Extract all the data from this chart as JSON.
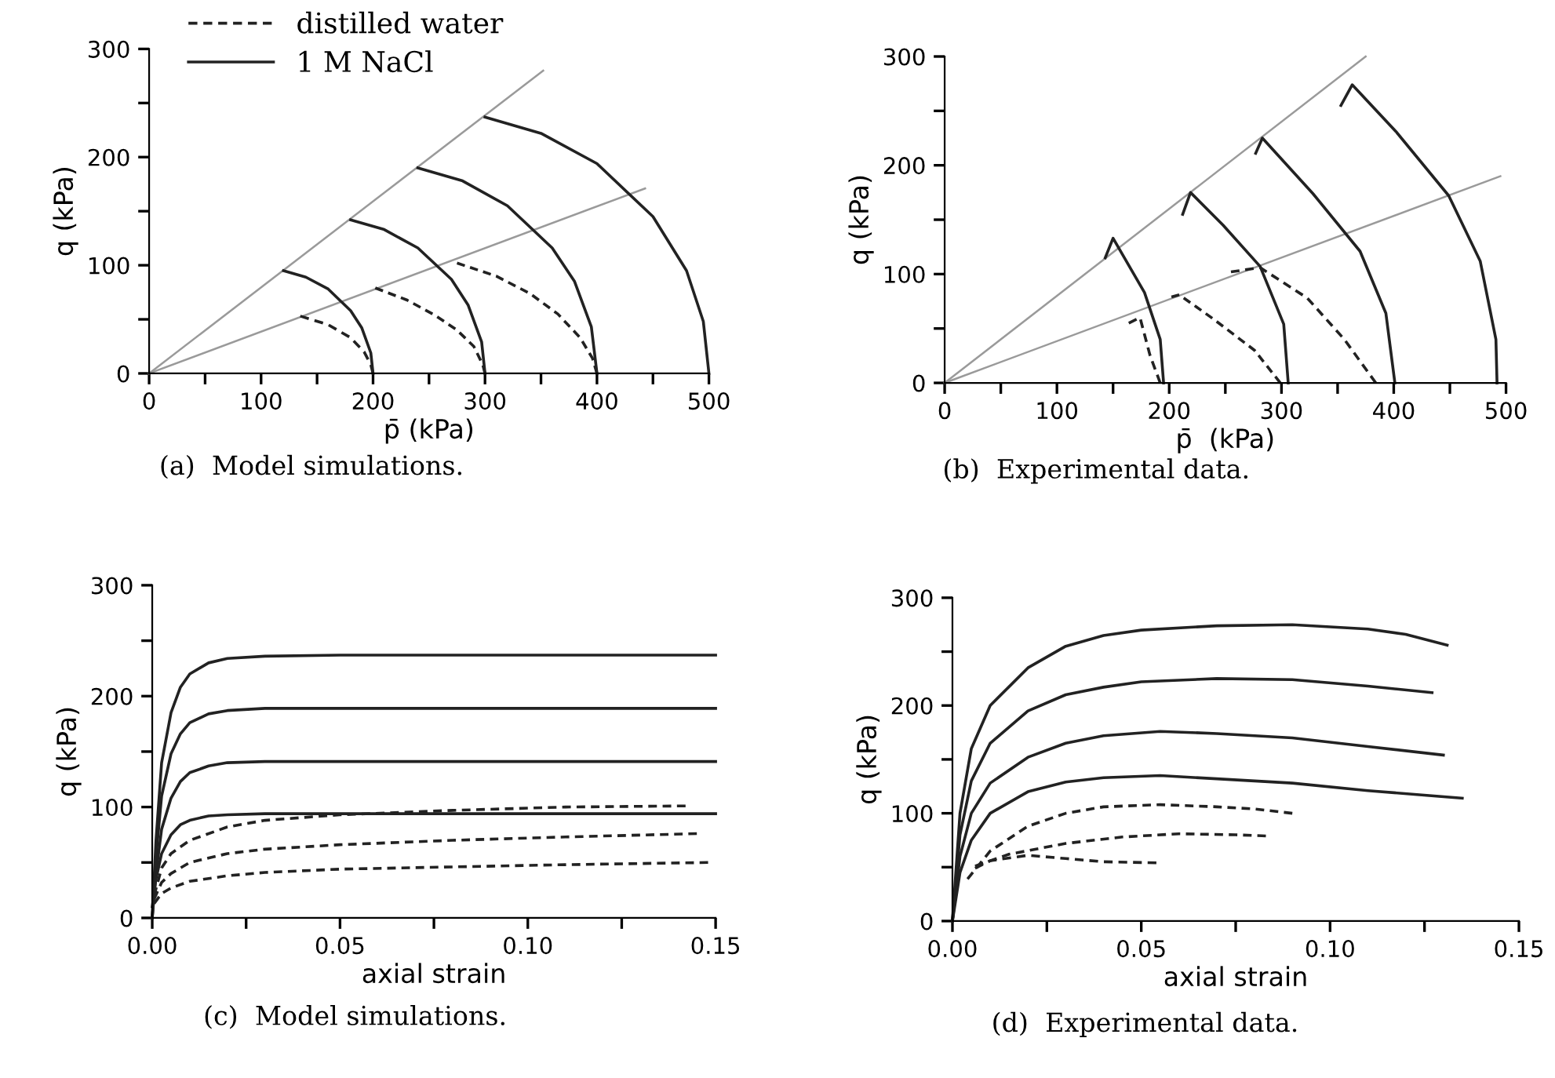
{
  "chart_data": [
    {
      "type": "line",
      "title": "(a)  Model simulations.",
      "xlabel": "p̄ (kPa)",
      "ylabel": "q (kPa)",
      "xlim": [
        0,
        500
      ],
      "ylim": [
        0,
        300
      ],
      "xticks": [
        0,
        {
          "value": 50,
          "label": null
        },
        100,
        {
          "value": 150,
          "label": null
        },
        200,
        {
          "value": 250,
          "label": null
        },
        300,
        {
          "value": 350,
          "label": null
        },
        400,
        {
          "value": 450,
          "label": null
        },
        500
      ],
      "yticks": [
        0,
        {
          "value": 50,
          "label": null
        },
        100,
        {
          "value": 150,
          "label": null
        },
        200,
        {
          "value": 250,
          "label": null
        },
        300
      ],
      "grid": false,
      "legend": "top left",
      "series": [
        {
          "color": "#9a9a9a",
          "x": [
            0,
            352
          ],
          "values": [
            0,
            280
          ]
        },
        {
          "color": "#9a9a9a",
          "x": [
            0,
            443
          ],
          "values": [
            0,
            171
          ]
        },
        {
          "name": "distilled water",
          "color": "#222222",
          "line_style": "dashed",
          "x": [
            135,
            160,
            180,
            192,
            198,
            200
          ],
          "values": [
            53,
            45,
            33,
            20,
            8,
            0
          ]
        },
        {
          "name": "1 M NaCl",
          "color": "#222222",
          "line_style": "solid",
          "x": [
            120,
            140,
            160,
            180,
            190,
            198,
            200
          ],
          "values": [
            95,
            89,
            78,
            58,
            42,
            19,
            0
          ]
        },
        {
          "color": "#222222",
          "line_style": "solid",
          "x": [
            180,
            210,
            240,
            270,
            285,
            297,
            300
          ],
          "values": [
            142,
            133,
            116,
            87,
            63,
            29,
            0
          ]
        },
        {
          "color": "#222222",
          "line_style": "solid",
          "x": [
            240,
            280,
            320,
            360,
            380,
            395,
            400
          ],
          "values": [
            190,
            178,
            155,
            116,
            85,
            43,
            0
          ]
        },
        {
          "color": "#222222",
          "line_style": "solid",
          "x": [
            300,
            350,
            400,
            450,
            480,
            495,
            500
          ],
          "values": [
            237,
            222,
            194,
            145,
            95,
            48,
            0
          ]
        },
        {
          "color": "#222222",
          "line_style": "dashed",
          "x": [
            202,
            230,
            255,
            275,
            290,
            298,
            300
          ],
          "values": [
            79,
            68,
            54,
            40,
            25,
            8,
            0
          ]
        },
        {
          "color": "#222222",
          "line_style": "dashed",
          "x": [
            275,
            310,
            340,
            365,
            385,
            396,
            400
          ],
          "values": [
            102,
            90,
            74,
            55,
            33,
            14,
            0
          ]
        }
      ]
    },
    {
      "type": "line",
      "title": "(b)  Experimental data.",
      "xlabel": "p̄  (kPa)",
      "ylabel": "q (kPa)",
      "xlim": [
        0,
        500
      ],
      "ylim": [
        0,
        300
      ],
      "xticks": [
        0,
        {
          "value": 50,
          "label": null
        },
        100,
        {
          "value": 150,
          "label": null
        },
        200,
        {
          "value": 250,
          "label": null
        },
        300,
        {
          "value": 350,
          "label": null
        },
        400,
        {
          "value": 450,
          "label": null
        },
        500
      ],
      "yticks": [
        0,
        {
          "value": 50,
          "label": null
        },
        100,
        {
          "value": 150,
          "label": null
        },
        200,
        {
          "value": 250,
          "label": null
        },
        300
      ],
      "grid": false,
      "series": [
        {
          "color": "#9a9a9a",
          "x": [
            0,
            375
          ],
          "values": [
            0,
            300
          ]
        },
        {
          "color": "#9a9a9a",
          "x": [
            0,
            495
          ],
          "values": [
            0,
            190
          ]
        },
        {
          "color": "#222222",
          "line_style": "solid",
          "x": [
            143,
            150,
            178,
            192,
            195
          ],
          "values": [
            115,
            133,
            83,
            40,
            0
          ]
        },
        {
          "color": "#222222",
          "line_style": "solid",
          "x": [
            212,
            219,
            248,
            281,
            302,
            306
          ],
          "values": [
            155,
            175,
            145,
            107,
            54,
            0
          ]
        },
        {
          "color": "#222222",
          "line_style": "solid",
          "x": [
            277,
            283,
            328,
            370,
            393,
            401
          ],
          "values": [
            211,
            225,
            174,
            121,
            64,
            0
          ]
        },
        {
          "color": "#222222",
          "line_style": "solid",
          "x": [
            353,
            363,
            402,
            449,
            477,
            491,
            492
          ],
          "values": [
            255,
            274,
            231,
            172,
            112,
            40,
            0
          ]
        },
        {
          "color": "#222222",
          "line_style": "dashed",
          "x": [
            164,
            174,
            183,
            192
          ],
          "values": [
            55,
            60,
            25,
            0
          ]
        },
        {
          "color": "#222222",
          "line_style": "dashed",
          "x": [
            202,
            209,
            239,
            276,
            299
          ],
          "values": [
            79,
            81,
            59,
            30,
            0
          ]
        },
        {
          "color": "#222222",
          "line_style": "dashed",
          "x": [
            255,
            281,
            323,
            356,
            384
          ],
          "values": [
            102,
            106,
            78,
            40,
            0
          ]
        }
      ]
    },
    {
      "type": "line",
      "title": "(c)  Model simulations.",
      "xlabel": "axial strain",
      "ylabel": "q (kPa)",
      "xlim": [
        0,
        0.15
      ],
      "ylim": [
        0,
        300
      ],
      "xticks": [
        {
          "value": 0,
          "label": "0.00"
        },
        {
          "value": 0.025,
          "label": null
        },
        {
          "value": 0.05,
          "label": "0.05"
        },
        {
          "value": 0.075,
          "label": null
        },
        {
          "value": 0.1,
          "label": "0.10"
        },
        {
          "value": 0.125,
          "label": null
        },
        {
          "value": 0.15,
          "label": "0.15"
        }
      ],
      "yticks": [
        0,
        {
          "value": 50,
          "label": null
        },
        100,
        {
          "value": 150,
          "label": null
        },
        200,
        {
          "value": 250,
          "label": null
        },
        300
      ],
      "grid": false,
      "series": [
        {
          "color": "#222222",
          "line_style": "solid",
          "x": [
            0,
            0.001,
            0.0025,
            0.005,
            0.0075,
            0.01,
            0.015,
            0.02,
            0.03,
            0.05,
            0.15
          ],
          "values": [
            0,
            70,
            140,
            185,
            208,
            220,
            230,
            234,
            236,
            237,
            237
          ]
        },
        {
          "color": "#222222",
          "line_style": "solid",
          "x": [
            0,
            0.001,
            0.0025,
            0.005,
            0.0075,
            0.01,
            0.015,
            0.02,
            0.03,
            0.05,
            0.15
          ],
          "values": [
            0,
            55,
            110,
            148,
            166,
            176,
            184,
            187,
            189,
            189,
            189
          ]
        },
        {
          "color": "#222222",
          "line_style": "solid",
          "x": [
            0,
            0.001,
            0.0025,
            0.005,
            0.0075,
            0.01,
            0.015,
            0.02,
            0.03,
            0.05,
            0.15
          ],
          "values": [
            0,
            40,
            80,
            108,
            123,
            131,
            137,
            140,
            141,
            141,
            141
          ]
        },
        {
          "color": "#222222",
          "line_style": "solid",
          "x": [
            0,
            0.001,
            0.0025,
            0.005,
            0.0075,
            0.01,
            0.015,
            0.02,
            0.03,
            0.05,
            0.15
          ],
          "values": [
            10,
            35,
            58,
            75,
            84,
            88,
            92,
            93,
            94,
            94,
            94
          ]
        },
        {
          "color": "#222222",
          "line_style": "dashed",
          "x": [
            0.0005,
            0.0025,
            0.005,
            0.01,
            0.02,
            0.03,
            0.05,
            0.08,
            0.11,
            0.142
          ],
          "values": [
            20,
            45,
            58,
            70,
            82,
            88,
            93,
            97,
            100,
            101
          ]
        },
        {
          "color": "#222222",
          "line_style": "dashed",
          "x": [
            0.0005,
            0.0025,
            0.005,
            0.01,
            0.02,
            0.03,
            0.05,
            0.08,
            0.11,
            0.145
          ],
          "values": [
            17,
            32,
            40,
            50,
            58,
            62,
            66,
            70,
            73,
            76
          ]
        },
        {
          "color": "#222222",
          "line_style": "dashed",
          "x": [
            0.0005,
            0.0025,
            0.005,
            0.01,
            0.02,
            0.03,
            0.05,
            0.08,
            0.11,
            0.148
          ],
          "values": [
            13,
            22,
            27,
            33,
            38,
            41,
            44,
            46,
            48,
            50
          ]
        }
      ]
    },
    {
      "type": "line",
      "title": "(d)  Experimental data.",
      "xlabel": "axial strain",
      "ylabel": "q (kPa)",
      "xlim": [
        0,
        0.15
      ],
      "ylim": [
        0,
        300
      ],
      "xticks": [
        {
          "value": 0,
          "label": "0.00"
        },
        {
          "value": 0.025,
          "label": null
        },
        {
          "value": 0.05,
          "label": "0.05"
        },
        {
          "value": 0.075,
          "label": null
        },
        {
          "value": 0.1,
          "label": "0.10"
        },
        {
          "value": 0.125,
          "label": null
        },
        {
          "value": 0.15,
          "label": "0.15"
        }
      ],
      "yticks": [
        0,
        {
          "value": 50,
          "label": null
        },
        100,
        {
          "value": 150,
          "label": null
        },
        200,
        {
          "value": 250,
          "label": null
        },
        300
      ],
      "grid": false,
      "series": [
        {
          "color": "#222222",
          "line_style": "solid",
          "x": [
            0,
            0.002,
            0.005,
            0.01,
            0.02,
            0.03,
            0.04,
            0.05,
            0.07,
            0.09,
            0.11,
            0.12,
            0.131
          ],
          "values": [
            0,
            100,
            160,
            200,
            235,
            255,
            265,
            270,
            274,
            275,
            271,
            266,
            256
          ]
        },
        {
          "color": "#222222",
          "line_style": "solid",
          "x": [
            0,
            0.002,
            0.005,
            0.01,
            0.02,
            0.03,
            0.04,
            0.05,
            0.07,
            0.09,
            0.11,
            0.127
          ],
          "values": [
            0,
            80,
            130,
            165,
            195,
            210,
            217,
            222,
            225,
            224,
            218,
            212
          ]
        },
        {
          "color": "#222222",
          "line_style": "solid",
          "x": [
            0,
            0.002,
            0.005,
            0.01,
            0.02,
            0.03,
            0.04,
            0.055,
            0.07,
            0.09,
            0.11,
            0.13
          ],
          "values": [
            0,
            60,
            100,
            128,
            152,
            165,
            172,
            176,
            174,
            170,
            162,
            154
          ]
        },
        {
          "color": "#222222",
          "line_style": "solid",
          "x": [
            0,
            0.002,
            0.005,
            0.01,
            0.02,
            0.03,
            0.04,
            0.055,
            0.07,
            0.09,
            0.11,
            0.135
          ],
          "values": [
            0,
            45,
            75,
            100,
            120,
            129,
            133,
            135,
            132,
            128,
            121,
            114
          ]
        },
        {
          "color": "#222222",
          "line_style": "dashed",
          "x": [
            0.004,
            0.01,
            0.02,
            0.03,
            0.04,
            0.055,
            0.07,
            0.08,
            0.09
          ],
          "values": [
            39,
            65,
            88,
            100,
            106,
            108,
            106,
            104,
            100
          ]
        },
        {
          "color": "#222222",
          "line_style": "dashed",
          "x": [
            0.006,
            0.015,
            0.03,
            0.045,
            0.06,
            0.075,
            0.083
          ],
          "values": [
            51,
            62,
            72,
            78,
            81,
            80,
            79
          ]
        },
        {
          "color": "#222222",
          "line_style": "dashed",
          "x": [
            0.006,
            0.01,
            0.02,
            0.03,
            0.04,
            0.054
          ],
          "values": [
            49,
            56,
            61,
            58,
            55,
            54
          ]
        }
      ]
    }
  ]
}
